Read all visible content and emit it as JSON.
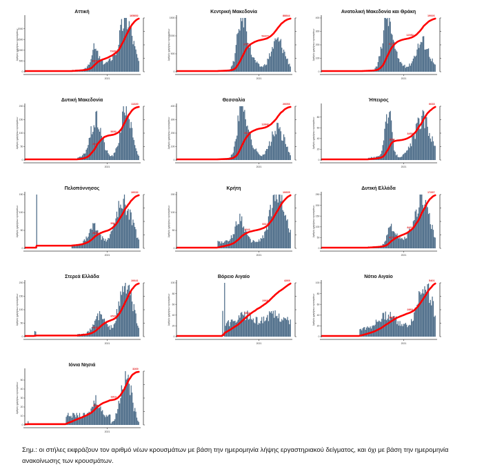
{
  "caption": "Σημ.:  οι στήλες εκφράζουν τον αριθμό νέων κρουσμάτων με βάση την ημερομηνία λήψης εργαστηριακού δείγματος, και όχι με βάση την ημερομηνία ανακοίνωσης των κρουσμάτων.",
  "colors": {
    "bars": "#4a6a87",
    "line": "#ff0000",
    "label": "#e31a1c"
  },
  "chart_data": [
    {
      "type": "bar",
      "title": "Αττική",
      "xlabel": "2021",
      "ylabel": "Αριθμός ημερήσιων κρουσμάτων",
      "ylim": [
        0,
        2500
      ],
      "yticks": [
        0,
        500,
        1000,
        1500,
        2000
      ],
      "cum_labels": [
        "16001",
        "79301",
        "165852"
      ],
      "profile": "attica",
      "cumulative_total": 165852
    },
    {
      "type": "bar",
      "title": "Κεντρική Μακεδονία",
      "xlabel": "2021",
      "ylabel": "Αριθμός ημερήσιων κρουσμάτων",
      "ylim": [
        0,
        1500
      ],
      "yticks": [
        0,
        500,
        1000,
        1500
      ],
      "cum_labels": [
        "27056",
        "54477",
        "88844"
      ],
      "profile": "north",
      "cumulative_total": 88844
    },
    {
      "type": "bar",
      "title": "Ανατολική Μακεδονία και Θράκη",
      "xlabel": "2021",
      "ylabel": "Αριθμός ημερήσιων κρουσμάτων",
      "ylim": [
        0,
        400
      ],
      "yticks": [
        0,
        100,
        200,
        300,
        400
      ],
      "cum_labels": [
        "6174",
        "12052",
        "19926"
      ],
      "profile": "north",
      "cumulative_total": 19926
    },
    {
      "type": "bar",
      "title": "Δυτική Μακεδονία",
      "xlabel": "2021",
      "ylabel": "Αριθμός ημερήσιων κρουσμάτων",
      "ylim": [
        0,
        200
      ],
      "yticks": [
        0,
        50,
        100,
        150,
        200
      ],
      "cum_labels": [
        "2912",
        "5692",
        "11320"
      ],
      "profile": "westmac",
      "cumulative_total": 11320
    },
    {
      "type": "bar",
      "title": "Θεσσαλία",
      "xlabel": "2021",
      "ylabel": "Αριθμός ημερήσιων κρουσμάτων",
      "ylim": [
        0,
        400
      ],
      "yticks": [
        0,
        100,
        200,
        300,
        400
      ],
      "cum_labels": [
        "8112",
        "13842",
        "26053"
      ],
      "profile": "north",
      "cumulative_total": 26053
    },
    {
      "type": "bar",
      "title": "Ήπειρος",
      "xlabel": "2021",
      "ylabel": "Αριθμός ημερήσιων κρουσμάτων",
      "ylim": [
        0,
        100
      ],
      "yticks": [
        0,
        20,
        40,
        60,
        80
      ],
      "cum_labels": [
        "1654",
        "3450",
        "6633"
      ],
      "profile": "epirus",
      "cumulative_total": 6633
    },
    {
      "type": "bar",
      "title": "Πελοπόννησος",
      "xlabel": "2021",
      "ylabel": "Αριθμός ημερήσιων κρουσμάτων",
      "ylim": [
        0,
        150
      ],
      "yticks": [
        0,
        50,
        100,
        150
      ],
      "cum_labels": [
        "2685",
        "5913",
        "10032"
      ],
      "profile": "pelop",
      "cumulative_total": 10032
    },
    {
      "type": "bar",
      "title": "Κρήτη",
      "xlabel": "2021",
      "ylabel": "Αριθμός ημερήσιων κρουσμάτων",
      "ylim": [
        0,
        150
      ],
      "yticks": [
        0,
        50,
        100,
        150
      ],
      "cum_labels": [
        "2643",
        "6613",
        "10605"
      ],
      "profile": "crete",
      "cumulative_total": 10605
    },
    {
      "type": "bar",
      "title": "Δυτική Ελλάδα",
      "xlabel": "2021",
      "ylabel": "Αριθμός ημερήσιων κρουσμάτων",
      "ylim": [
        0,
        250
      ],
      "yticks": [
        0,
        50,
        100,
        150,
        200,
        250
      ],
      "cum_labels": [
        "4278",
        "8401",
        "17297"
      ],
      "profile": "attica",
      "cumulative_total": 17297
    },
    {
      "type": "bar",
      "title": "Στερεά Ελλάδα",
      "xlabel": "2021",
      "ylabel": "Αριθμός ημερήσιων κρουσμάτων",
      "ylim": [
        0,
        200
      ],
      "yticks": [
        0,
        50,
        100,
        150,
        200
      ],
      "cum_labels": [
        "3426",
        "6531",
        "10641"
      ],
      "profile": "stereia",
      "cumulative_total": 10641
    },
    {
      "type": "bar",
      "title": "Βόρειο Αιγαίο",
      "xlabel": "2021",
      "ylabel": "Αριθμός ημερήσιων κρουσμάτων",
      "ylim": [
        0,
        100
      ],
      "yticks": [
        0,
        20,
        40,
        60,
        80,
        100
      ],
      "cum_labels": [
        "1534",
        "2968",
        "4269"
      ],
      "profile": "aegean",
      "cumulative_total": 4269
    },
    {
      "type": "bar",
      "title": "Νότιο Αιγαίο",
      "xlabel": "2021",
      "ylabel": "Αριθμός ημερήσιων κρουσμάτων",
      "ylim": [
        0,
        100
      ],
      "yticks": [
        0,
        20,
        40,
        60,
        80,
        100
      ],
      "cum_labels": [
        "1804",
        "2860",
        "5401"
      ],
      "profile": "south",
      "cumulative_total": 5401
    },
    {
      "type": "bar",
      "title": "Ιόνια Νησιά",
      "xlabel": "2021",
      "ylabel": "Αριθμός ημερήσιων κρουσμάτων",
      "ylim": [
        0,
        60
      ],
      "yticks": [
        0,
        10,
        20,
        30,
        40,
        50
      ],
      "cum_labels": [
        "823",
        "1813",
        "3269"
      ],
      "profile": "ionian",
      "cumulative_total": 3269
    }
  ]
}
